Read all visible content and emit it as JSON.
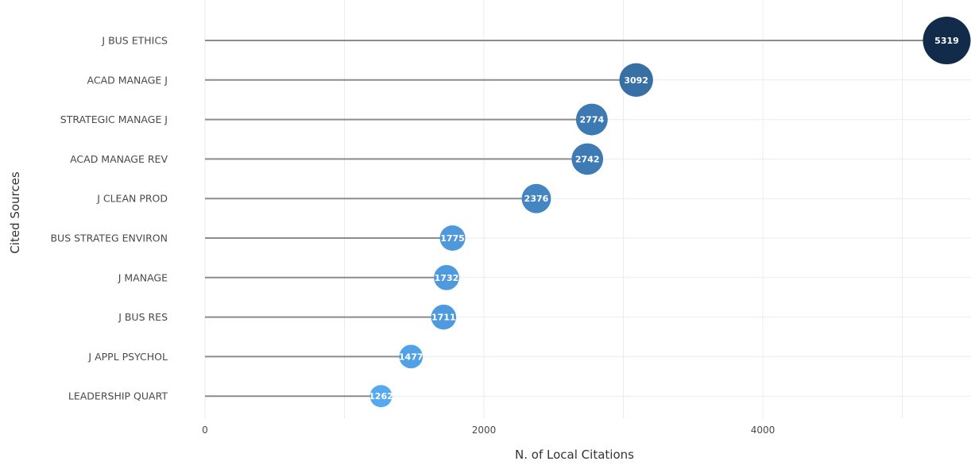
{
  "chart_data": {
    "type": "scatter",
    "title": "",
    "xlabel": "N. of Local Citations",
    "ylabel": "Cited Sources",
    "categories": [
      "J BUS ETHICS",
      "ACAD MANAGE J",
      "STRATEGIC MANAGE J",
      "ACAD MANAGE REV",
      "J CLEAN PROD",
      "BUS STRATEG ENVIRON",
      "J MANAGE",
      "J BUS RES",
      "J APPL PSYCHOL",
      "LEADERSHIP QUART"
    ],
    "values": [
      5319,
      3092,
      2774,
      2742,
      2376,
      1775,
      1732,
      1711,
      1477,
      1262
    ],
    "point_labels": [
      "5319",
      "3092",
      "2774",
      "2742",
      "2376",
      "1775",
      "1732",
      "1711",
      "1477",
      "1262"
    ],
    "xlim": [
      0,
      5400
    ],
    "xticks": [
      0,
      2000,
      4000
    ],
    "xtick_labels": [
      "0",
      "2000",
      "4000"
    ],
    "grid": true,
    "legend": "none",
    "colors": {
      "low": "#56a8f0",
      "high": "#132b4a",
      "stem": "#8c8c8c",
      "grid": "#ebebeb"
    }
  }
}
